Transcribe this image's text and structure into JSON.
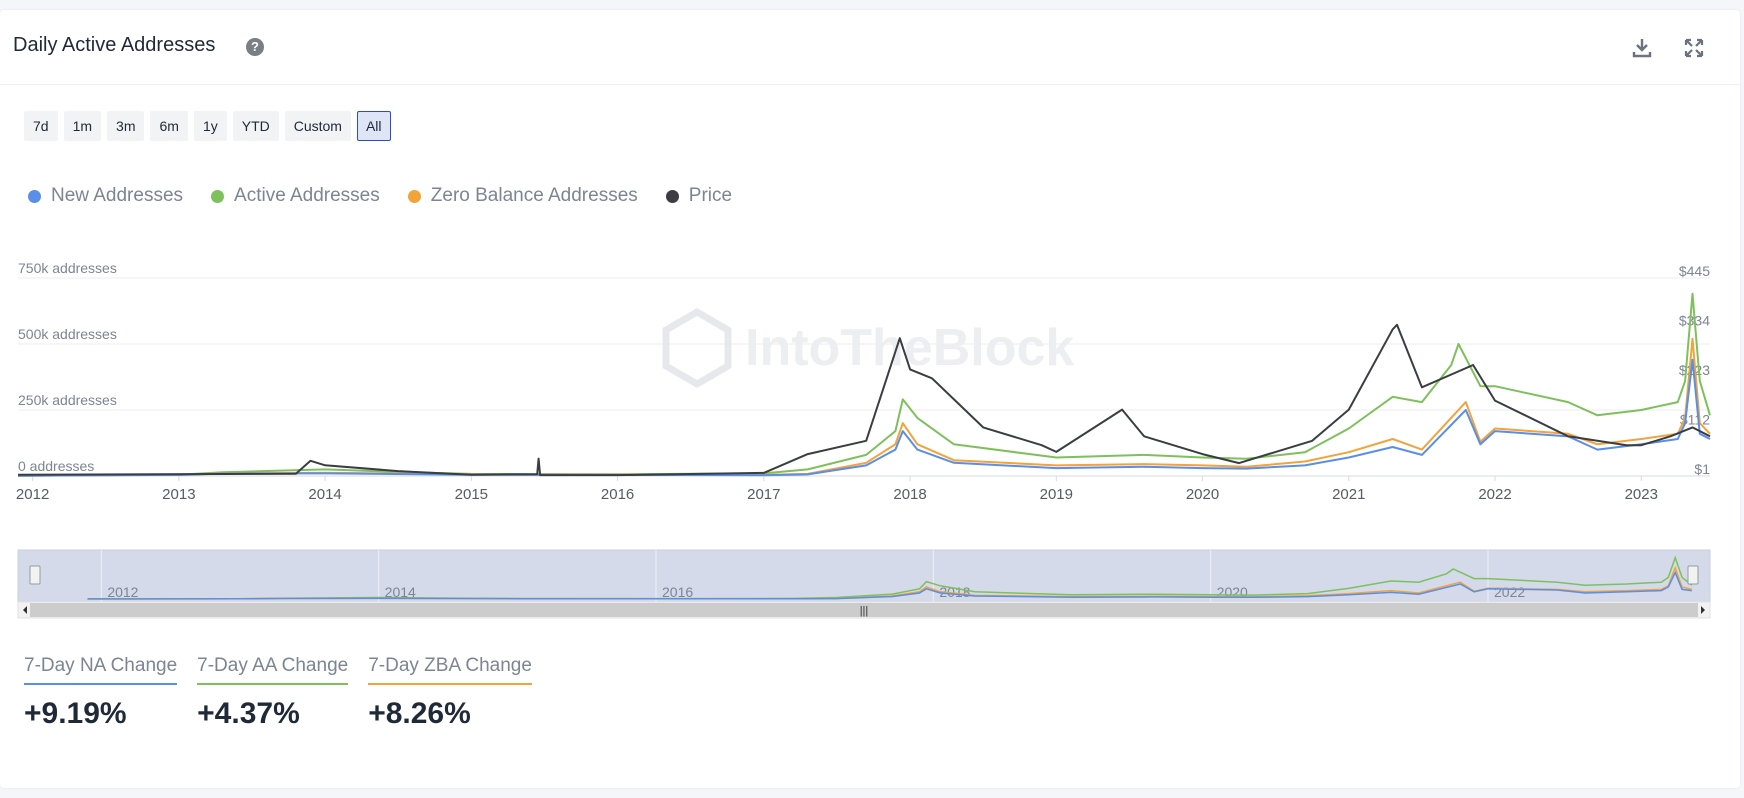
{
  "header": {
    "title": "Daily Active Addresses",
    "help_icon": "question-circle-icon",
    "download_icon": "download-icon",
    "fullscreen_icon": "expand-icon"
  },
  "range_buttons": [
    {
      "label": "7d",
      "active": false
    },
    {
      "label": "1m",
      "active": false
    },
    {
      "label": "3m",
      "active": false
    },
    {
      "label": "6m",
      "active": false
    },
    {
      "label": "1y",
      "active": false
    },
    {
      "label": "YTD",
      "active": false
    },
    {
      "label": "Custom",
      "active": false
    },
    {
      "label": "All",
      "active": true
    }
  ],
  "watermark": "IntoTheBlock",
  "chart_data": {
    "type": "line",
    "x_ticks": [
      "2012",
      "2013",
      "2014",
      "2015",
      "2016",
      "2017",
      "2018",
      "2019",
      "2020",
      "2021",
      "2022",
      "2023"
    ],
    "x_range": [
      2011.9,
      2023.47
    ],
    "y_left_ticks": [
      "0 addresses",
      "250k addresses",
      "500k addresses",
      "750k addresses"
    ],
    "y_left_range": [
      0,
      750000
    ],
    "y_right_ticks": [
      "$1",
      "$112",
      "$223",
      "$334",
      "$445"
    ],
    "y_right_range": [
      1,
      445
    ],
    "grid": true,
    "legend_position": "top-left",
    "series": [
      {
        "name": "New Addresses",
        "color": "#5b8ee6",
        "axis": "left",
        "points": [
          [
            2011.9,
            1000
          ],
          [
            2013,
            4000
          ],
          [
            2013.3,
            9000
          ],
          [
            2014,
            10000
          ],
          [
            2015,
            5000
          ],
          [
            2016,
            4000
          ],
          [
            2017,
            3000
          ],
          [
            2017.3,
            6000
          ],
          [
            2017.7,
            40000
          ],
          [
            2017.9,
            100000
          ],
          [
            2017.95,
            170000
          ],
          [
            2018.05,
            100000
          ],
          [
            2018.3,
            50000
          ],
          [
            2019,
            30000
          ],
          [
            2019.6,
            35000
          ],
          [
            2020,
            30000
          ],
          [
            2020.3,
            28000
          ],
          [
            2020.7,
            40000
          ],
          [
            2021,
            70000
          ],
          [
            2021.3,
            110000
          ],
          [
            2021.5,
            80000
          ],
          [
            2021.8,
            250000
          ],
          [
            2021.9,
            120000
          ],
          [
            2022,
            170000
          ],
          [
            2022.5,
            150000
          ],
          [
            2022.7,
            100000
          ],
          [
            2023,
            120000
          ],
          [
            2023.25,
            140000
          ],
          [
            2023.3,
            200000
          ],
          [
            2023.35,
            440000
          ],
          [
            2023.4,
            160000
          ],
          [
            2023.47,
            140000
          ]
        ]
      },
      {
        "name": "Active Addresses",
        "color": "#7ec05b",
        "axis": "left",
        "points": [
          [
            2011.9,
            1000
          ],
          [
            2013,
            5000
          ],
          [
            2013.3,
            14000
          ],
          [
            2014,
            25000
          ],
          [
            2014.5,
            15000
          ],
          [
            2015,
            8000
          ],
          [
            2016,
            7000
          ],
          [
            2017,
            10000
          ],
          [
            2017.3,
            25000
          ],
          [
            2017.7,
            80000
          ],
          [
            2017.9,
            170000
          ],
          [
            2017.95,
            290000
          ],
          [
            2018.05,
            220000
          ],
          [
            2018.3,
            120000
          ],
          [
            2019,
            70000
          ],
          [
            2019.6,
            80000
          ],
          [
            2020,
            70000
          ],
          [
            2020.3,
            65000
          ],
          [
            2020.7,
            90000
          ],
          [
            2021,
            180000
          ],
          [
            2021.3,
            300000
          ],
          [
            2021.5,
            280000
          ],
          [
            2021.7,
            420000
          ],
          [
            2021.75,
            500000
          ],
          [
            2021.9,
            340000
          ],
          [
            2022,
            340000
          ],
          [
            2022.5,
            280000
          ],
          [
            2022.7,
            230000
          ],
          [
            2023,
            250000
          ],
          [
            2023.25,
            280000
          ],
          [
            2023.3,
            360000
          ],
          [
            2023.35,
            690000
          ],
          [
            2023.4,
            360000
          ],
          [
            2023.47,
            230000
          ]
        ]
      },
      {
        "name": "Zero Balance Addresses",
        "color": "#f0a43a",
        "axis": "left",
        "points": [
          [
            2011.9,
            1000
          ],
          [
            2013,
            4000
          ],
          [
            2013.3,
            10000
          ],
          [
            2014,
            12000
          ],
          [
            2015,
            6000
          ],
          [
            2016,
            5000
          ],
          [
            2017,
            4000
          ],
          [
            2017.3,
            8000
          ],
          [
            2017.7,
            50000
          ],
          [
            2017.9,
            120000
          ],
          [
            2017.95,
            200000
          ],
          [
            2018.05,
            120000
          ],
          [
            2018.3,
            60000
          ],
          [
            2019,
            40000
          ],
          [
            2019.6,
            45000
          ],
          [
            2020,
            40000
          ],
          [
            2020.3,
            35000
          ],
          [
            2020.7,
            55000
          ],
          [
            2021,
            90000
          ],
          [
            2021.3,
            140000
          ],
          [
            2021.5,
            100000
          ],
          [
            2021.8,
            280000
          ],
          [
            2021.9,
            130000
          ],
          [
            2022,
            180000
          ],
          [
            2022.5,
            160000
          ],
          [
            2022.7,
            120000
          ],
          [
            2023,
            140000
          ],
          [
            2023.25,
            160000
          ],
          [
            2023.3,
            220000
          ],
          [
            2023.35,
            520000
          ],
          [
            2023.4,
            200000
          ],
          [
            2023.47,
            160000
          ]
        ]
      },
      {
        "name": "Price",
        "color": "#3a3d42",
        "axis": "right",
        "points": [
          [
            2011.9,
            4
          ],
          [
            2013.8,
            6
          ],
          [
            2013.9,
            35
          ],
          [
            2014,
            25
          ],
          [
            2014.5,
            12
          ],
          [
            2015,
            4
          ],
          [
            2015.45,
            5
          ],
          [
            2015.46,
            40
          ],
          [
            2015.47,
            3
          ],
          [
            2016,
            3
          ],
          [
            2017,
            8
          ],
          [
            2017.3,
            50
          ],
          [
            2017.7,
            80
          ],
          [
            2017.93,
            310
          ],
          [
            2018,
            240
          ],
          [
            2018.15,
            220
          ],
          [
            2018.5,
            110
          ],
          [
            2018.9,
            70
          ],
          [
            2019,
            55
          ],
          [
            2019.45,
            150
          ],
          [
            2019.6,
            90
          ],
          [
            2020,
            50
          ],
          [
            2020.25,
            30
          ],
          [
            2020.5,
            55
          ],
          [
            2020.75,
            80
          ],
          [
            2021,
            150
          ],
          [
            2021.3,
            330
          ],
          [
            2021.33,
            340
          ],
          [
            2021.5,
            200
          ],
          [
            2021.85,
            250
          ],
          [
            2022,
            170
          ],
          [
            2022.5,
            90
          ],
          [
            2022.9,
            70
          ],
          [
            2023,
            70
          ],
          [
            2023.2,
            90
          ],
          [
            2023.35,
            110
          ],
          [
            2023.47,
            90
          ]
        ]
      }
    ]
  },
  "navigator": {
    "labels": [
      "2012",
      "2014",
      "2016",
      "2018",
      "2020",
      "2022"
    ],
    "scroll_left_icon": "arrow-left-icon",
    "scroll_right_icon": "arrow-right-icon"
  },
  "kpis": [
    {
      "label": "7-Day NA Change",
      "value": "+9.19%",
      "color": "#5b8ee6"
    },
    {
      "label": "7-Day AA Change",
      "value": "+4.37%",
      "color": "#7ec05b"
    },
    {
      "label": "7-Day ZBA Change",
      "value": "+8.26%",
      "color": "#f0a43a"
    }
  ]
}
